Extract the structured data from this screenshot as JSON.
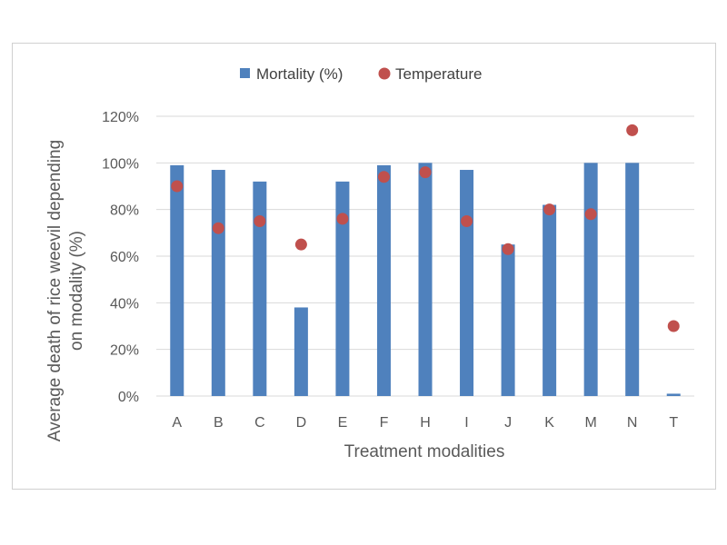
{
  "chart_data": {
    "type": "bar",
    "categories": [
      "A",
      "B",
      "C",
      "D",
      "E",
      "F",
      "H",
      "I",
      "J",
      "K",
      "M",
      "N",
      "T"
    ],
    "series": [
      {
        "name": "Mortality (%)",
        "type": "bar",
        "color": "#4f81bd",
        "values": [
          99,
          97,
          92,
          38,
          92,
          99,
          100,
          97,
          65,
          82,
          100,
          100,
          1
        ]
      },
      {
        "name": "Temperature",
        "type": "scatter",
        "color": "#c0504d",
        "values": [
          90,
          72,
          75,
          65,
          76,
          94,
          96,
          75,
          63,
          80,
          78,
          114,
          30
        ]
      }
    ],
    "title": "",
    "xlabel": "Treatment modalities",
    "ylabel_lines": [
      "Average death of rice weevil depending",
      "on modality (%)"
    ],
    "ylim": [
      0,
      120
    ],
    "yticks": [
      0,
      20,
      40,
      60,
      80,
      100,
      120
    ],
    "ytick_suffix": "%",
    "grid": true,
    "legend_position": "top"
  }
}
